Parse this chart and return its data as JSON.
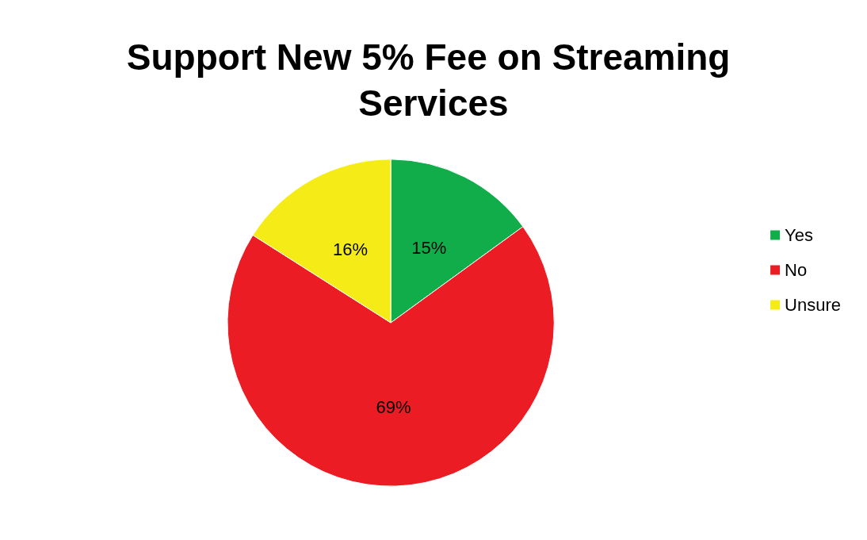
{
  "chart_data": {
    "type": "pie",
    "title": "Support New 5% Fee on Streaming Services",
    "categories": [
      "Yes",
      "No",
      "Unsure"
    ],
    "values": [
      15,
      69,
      16
    ],
    "colors": [
      "#12ad4b",
      "#ec1c24",
      "#f5ec17"
    ],
    "value_labels": [
      "15%",
      "69%",
      "16%"
    ],
    "legend": "right"
  }
}
